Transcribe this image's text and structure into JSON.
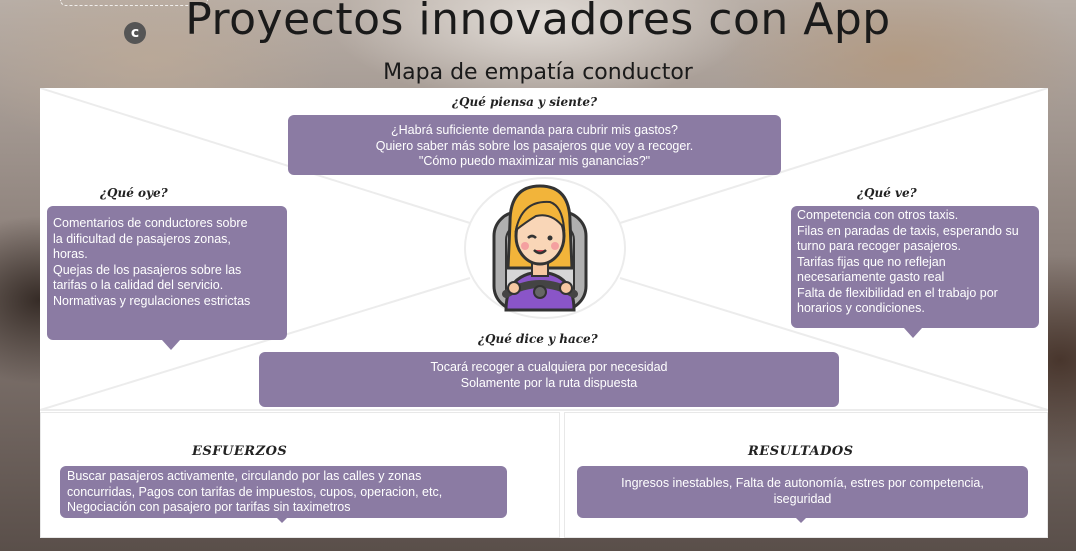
{
  "header": {
    "logo_icon": "copyright-c-icon",
    "title": "Proyectos innovadores con App",
    "subtitle": "Mapa de empatía conductor"
  },
  "colors": {
    "box_fill": "#8b7ba3",
    "box_text": "#ffffff",
    "board": "#ffffff"
  },
  "map": {
    "piensa": {
      "heading": "¿Qué  piensa y siente?",
      "lines": [
        "¿Habrá suficiente demanda para cubrir mis gastos?",
        "Quiero saber más sobre los pasajeros que voy a recoger.",
        "\"Cómo puedo maximizar mis ganancias?\""
      ]
    },
    "oye": {
      "heading": "¿Qué oye?",
      "lines": [
        "Comentarios de  conductores sobre",
        "la  dificultad  de  pasajeros  zonas,",
        "horas.",
        "Quejas de los pasajeros sobre las",
        "tarifas o la calidad del servicio.",
        "Normativas y regulaciones estrictas"
      ]
    },
    "ve": {
      "heading": "¿Qué ve?",
      "lines": [
        "Competencia con otros taxis.",
        "Filas en paradas de taxis, esperando su",
        "turno para recoger pasajeros.",
        "Tarifas      fijas      que      no      reflejan",
        "necesariamente gasto real",
        "Falta de flexibilidad en el trabajo por",
        "horarios y condiciones."
      ]
    },
    "dice": {
      "heading": "¿Qué dice y hace?",
      "lines": [
        "Tocará recoger a cualquiera por necesidad",
        "Solamente por la ruta dispuesta"
      ]
    },
    "center_icon": "taxi-driver-woman-icon"
  },
  "esfuerzos": {
    "title": "ESFUERZOS",
    "lines": [
      "Buscar pasajeros activamente, circulando por las calles y zonas",
      "concurridas, Pagos con tarifas de impuestos, cupos, operacion, etc,",
      "Negociación con pasajero  por tarifas sin taximetros"
    ]
  },
  "resultados": {
    "title": "RESULTADOS",
    "lines": [
      "Ingresos inestables, Falta de autonomía, estres por competencia,",
      "iseguridad"
    ]
  }
}
